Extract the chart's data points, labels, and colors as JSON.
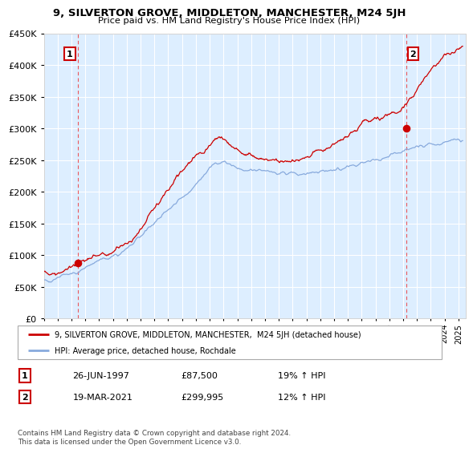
{
  "title1": "9, SILVERTON GROVE, MIDDLETON, MANCHESTER, M24 5JH",
  "title2": "Price paid vs. HM Land Registry's House Price Index (HPI)",
  "ylim": [
    0,
    450000
  ],
  "yticks": [
    0,
    50000,
    100000,
    150000,
    200000,
    250000,
    300000,
    350000,
    400000,
    450000
  ],
  "xmin": 1995.0,
  "xmax": 2025.5,
  "sale1_x": 1997.48,
  "sale1_y": 87500,
  "sale2_x": 2021.21,
  "sale2_y": 299995,
  "line_red_color": "#cc0000",
  "line_blue_color": "#88aadd",
  "point_color": "#cc0000",
  "vline_color": "#ee3333",
  "bg_color": "#ddeeff",
  "legend_line1": "9, SILVERTON GROVE, MIDDLETON, MANCHESTER,  M24 5JH (detached house)",
  "legend_line2": "HPI: Average price, detached house, Rochdale",
  "footnote": "Contains HM Land Registry data © Crown copyright and database right 2024.\nThis data is licensed under the Open Government Licence v3.0.",
  "box1_date": "26-JUN-1997",
  "box1_price": "£87,500",
  "box1_hpi": "19% ↑ HPI",
  "box2_date": "19-MAR-2021",
  "box2_price": "£299,995",
  "box2_hpi": "12% ↑ HPI"
}
